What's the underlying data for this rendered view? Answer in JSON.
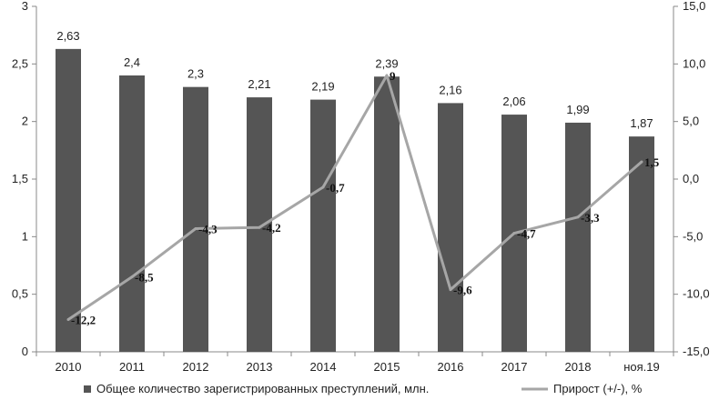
{
  "chart_data": {
    "type": "bar",
    "categories": [
      "2010",
      "2011",
      "2012",
      "2013",
      "2014",
      "2015",
      "2016",
      "2017",
      "2018",
      "ноя.19"
    ],
    "series": [
      {
        "name": "Общее количество зарегистрированных преступлений, млн.",
        "type": "bar",
        "axis": "left",
        "color": "#555555",
        "values": [
          2.63,
          2.4,
          2.3,
          2.21,
          2.19,
          2.39,
          2.16,
          2.06,
          1.99,
          1.87
        ],
        "labels": [
          "2,63",
          "2,4",
          "2,3",
          "2,21",
          "2,19",
          "2,39",
          "2,16",
          "2,06",
          "1,99",
          "1,87"
        ]
      },
      {
        "name": "Прирост (+/-), %",
        "type": "line",
        "axis": "right",
        "color": "#a6a6a6",
        "values": [
          -12.2,
          -8.5,
          -4.3,
          -4.2,
          -0.7,
          9,
          -9.6,
          -4.7,
          -3.3,
          1.5
        ],
        "labels": [
          "-12,2",
          "-8,5",
          "-4,3",
          "-4,2",
          "-0,7",
          "9",
          "-9,6",
          "-4,7",
          "-3,3",
          "1,5"
        ]
      }
    ],
    "y_left": {
      "ylim": [
        0,
        3
      ],
      "ticks": [
        0,
        0.5,
        1,
        1.5,
        2,
        2.5,
        3
      ],
      "tick_labels": [
        "0",
        "0,5",
        "1",
        "1,5",
        "2",
        "2,5",
        "3"
      ]
    },
    "y_right": {
      "ylim": [
        -15,
        15
      ],
      "ticks": [
        -15,
        -10,
        -5,
        0,
        5,
        10,
        15
      ],
      "tick_labels": [
        "-15,0",
        "-10,0",
        "-5,0",
        "0,0",
        "5,0",
        "10,0",
        "15,0"
      ]
    },
    "legend_position": "bottom",
    "grid": false
  }
}
